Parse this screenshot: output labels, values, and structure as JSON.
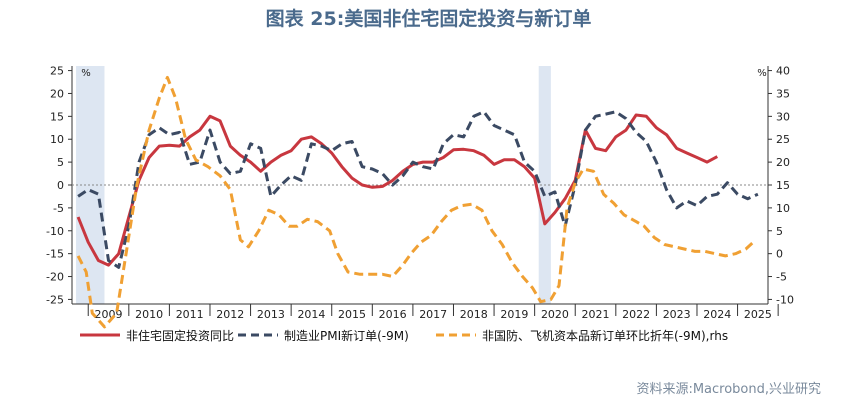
{
  "title": "图表 25:美国非住宅固定投资与新订单",
  "source": "资料来源:Macrobond,兴业研究",
  "chart_data": {
    "type": "line",
    "x_ticks": [
      "2009",
      "2010",
      "2011",
      "2012",
      "2013",
      "2014",
      "2015",
      "2016",
      "2017",
      "2018",
      "2019",
      "2020",
      "2021",
      "2022",
      "2023",
      "2024",
      "2025"
    ],
    "y_left": {
      "unit": "%",
      "ticks": [
        25,
        20,
        15,
        10,
        5,
        0,
        -5,
        -10,
        -15,
        -20,
        -25
      ],
      "range": [
        -26,
        26
      ]
    },
    "y_right": {
      "unit": "%",
      "ticks": [
        40,
        35,
        30,
        25,
        20,
        15,
        10,
        5,
        0,
        -5,
        -10
      ],
      "range": [
        -11,
        41
      ]
    },
    "recession_shading": [
      [
        2008.7,
        2009.4
      ],
      [
        2020.1,
        2020.4
      ]
    ],
    "zero_line": "left axis 0, dotted",
    "series": [
      {
        "name": "非住宅固定投资同比",
        "axis": "left",
        "color": "#c8373f",
        "style": "solid",
        "points": [
          [
            2008.75,
            -7
          ],
          [
            2009.0,
            -12.5
          ],
          [
            2009.25,
            -16.5
          ],
          [
            2009.5,
            -17.5
          ],
          [
            2009.75,
            -15
          ],
          [
            2010.0,
            -7
          ],
          [
            2010.25,
            1
          ],
          [
            2010.5,
            6
          ],
          [
            2010.75,
            8.5
          ],
          [
            2011.0,
            8.7
          ],
          [
            2011.25,
            8.5
          ],
          [
            2011.5,
            10.5
          ],
          [
            2011.75,
            12
          ],
          [
            2012.0,
            15
          ],
          [
            2012.25,
            14
          ],
          [
            2012.5,
            8.5
          ],
          [
            2012.75,
            6.5
          ],
          [
            2013.0,
            5
          ],
          [
            2013.25,
            3
          ],
          [
            2013.5,
            5
          ],
          [
            2013.75,
            6.5
          ],
          [
            2014.0,
            7.5
          ],
          [
            2014.25,
            10
          ],
          [
            2014.5,
            10.5
          ],
          [
            2014.75,
            9
          ],
          [
            2015.0,
            7
          ],
          [
            2015.25,
            4
          ],
          [
            2015.5,
            1.5
          ],
          [
            2015.75,
            0
          ],
          [
            2016.0,
            -0.5
          ],
          [
            2016.25,
            -0.3
          ],
          [
            2016.5,
            1
          ],
          [
            2016.75,
            3
          ],
          [
            2017.0,
            4.5
          ],
          [
            2017.25,
            5
          ],
          [
            2017.5,
            5
          ],
          [
            2017.75,
            6
          ],
          [
            2018.0,
            7.7
          ],
          [
            2018.25,
            7.8
          ],
          [
            2018.5,
            7.5
          ],
          [
            2018.75,
            6.5
          ],
          [
            2019.0,
            4.5
          ],
          [
            2019.25,
            5.5
          ],
          [
            2019.5,
            5.5
          ],
          [
            2019.75,
            4
          ],
          [
            2020.0,
            1.5
          ],
          [
            2020.25,
            -8.5
          ],
          [
            2020.5,
            -6
          ],
          [
            2020.75,
            -3
          ],
          [
            2021.0,
            1
          ],
          [
            2021.25,
            12
          ],
          [
            2021.5,
            8
          ],
          [
            2021.75,
            7.5
          ],
          [
            2022.0,
            10.5
          ],
          [
            2022.25,
            12
          ],
          [
            2022.5,
            15.3
          ],
          [
            2022.75,
            15
          ],
          [
            2023.0,
            12.5
          ],
          [
            2023.25,
            11
          ],
          [
            2023.5,
            8
          ],
          [
            2023.75,
            7
          ],
          [
            2024.0,
            6
          ],
          [
            2024.25,
            5
          ],
          [
            2024.5,
            6.2
          ]
        ]
      },
      {
        "name": "制造业PMI新订单(-9M)",
        "axis": "left",
        "color": "#3b4a63",
        "style": "dashed",
        "points": [
          [
            2008.75,
            -2.5
          ],
          [
            2009.0,
            -1
          ],
          [
            2009.25,
            -2
          ],
          [
            2009.5,
            -16.5
          ],
          [
            2009.75,
            -18
          ],
          [
            2010.0,
            -9
          ],
          [
            2010.25,
            5
          ],
          [
            2010.5,
            11
          ],
          [
            2010.75,
            12.5
          ],
          [
            2011.0,
            11
          ],
          [
            2011.25,
            11.5
          ],
          [
            2011.5,
            4.5
          ],
          [
            2011.75,
            5
          ],
          [
            2012.0,
            12
          ],
          [
            2012.25,
            5
          ],
          [
            2012.5,
            2.5
          ],
          [
            2012.75,
            3
          ],
          [
            2013.0,
            9
          ],
          [
            2013.25,
            8
          ],
          [
            2013.5,
            -2.5
          ],
          [
            2013.75,
            0
          ],
          [
            2014.0,
            2
          ],
          [
            2014.25,
            1
          ],
          [
            2014.5,
            9
          ],
          [
            2014.75,
            8.5
          ],
          [
            2015.0,
            7.5
          ],
          [
            2015.25,
            9
          ],
          [
            2015.5,
            9.5
          ],
          [
            2015.75,
            4
          ],
          [
            2016.0,
            3.5
          ],
          [
            2016.25,
            2.5
          ],
          [
            2016.5,
            0
          ],
          [
            2016.75,
            2
          ],
          [
            2017.0,
            5
          ],
          [
            2017.25,
            4
          ],
          [
            2017.5,
            3.5
          ],
          [
            2017.75,
            9
          ],
          [
            2018.0,
            11
          ],
          [
            2018.25,
            10.5
          ],
          [
            2018.5,
            15
          ],
          [
            2018.75,
            16
          ],
          [
            2019.0,
            13
          ],
          [
            2019.25,
            12
          ],
          [
            2019.5,
            11
          ],
          [
            2019.75,
            5
          ],
          [
            2020.0,
            3
          ],
          [
            2020.25,
            -2.5
          ],
          [
            2020.5,
            -1.5
          ],
          [
            2020.75,
            -9
          ],
          [
            2021.0,
            0
          ],
          [
            2021.25,
            12
          ],
          [
            2021.5,
            15
          ],
          [
            2021.75,
            15.5
          ],
          [
            2022.0,
            16
          ],
          [
            2022.25,
            14.5
          ],
          [
            2022.5,
            11.5
          ],
          [
            2022.75,
            9.5
          ],
          [
            2023.0,
            5
          ],
          [
            2023.25,
            -1
          ],
          [
            2023.5,
            -5
          ],
          [
            2023.75,
            -3.5
          ],
          [
            2024.0,
            -4.5
          ],
          [
            2024.25,
            -2.5
          ],
          [
            2024.5,
            -2
          ],
          [
            2024.75,
            0.5
          ],
          [
            2025.0,
            -2
          ],
          [
            2025.25,
            -3
          ],
          [
            2025.5,
            -2
          ]
        ]
      },
      {
        "name": "非国防、飞机资本品新订单环比折年(-9M),rhs",
        "axis": "right",
        "color": "#f0a033",
        "style": "dashed",
        "points": [
          [
            2008.75,
            -0.5
          ],
          [
            2008.95,
            -4
          ],
          [
            2009.1,
            -13
          ],
          [
            2009.4,
            -16
          ],
          [
            2009.7,
            -13
          ],
          [
            2009.95,
            1
          ],
          [
            2010.2,
            15
          ],
          [
            2010.5,
            27
          ],
          [
            2010.75,
            34
          ],
          [
            2010.95,
            38.5
          ],
          [
            2011.15,
            34
          ],
          [
            2011.4,
            25
          ],
          [
            2011.65,
            20.5
          ],
          [
            2011.95,
            19
          ],
          [
            2012.25,
            17
          ],
          [
            2012.5,
            14
          ],
          [
            2012.75,
            3
          ],
          [
            2012.95,
            1.5
          ],
          [
            2013.2,
            5
          ],
          [
            2013.45,
            9.5
          ],
          [
            2013.7,
            8.5
          ],
          [
            2013.95,
            6
          ],
          [
            2014.15,
            6
          ],
          [
            2014.4,
            7.5
          ],
          [
            2014.65,
            7
          ],
          [
            2014.95,
            5
          ],
          [
            2015.15,
            0
          ],
          [
            2015.4,
            -4
          ],
          [
            2015.7,
            -4.5
          ],
          [
            2015.95,
            -4.5
          ],
          [
            2016.25,
            -4.5
          ],
          [
            2016.5,
            -5
          ],
          [
            2016.75,
            -2.5
          ],
          [
            2016.95,
            0
          ],
          [
            2017.2,
            2.5
          ],
          [
            2017.45,
            4
          ],
          [
            2017.7,
            7
          ],
          [
            2017.95,
            9.5
          ],
          [
            2018.2,
            10.5
          ],
          [
            2018.45,
            10.8
          ],
          [
            2018.7,
            9.5
          ],
          [
            2018.95,
            5
          ],
          [
            2019.2,
            2
          ],
          [
            2019.45,
            -2
          ],
          [
            2019.7,
            -5
          ],
          [
            2019.95,
            -7.5
          ],
          [
            2020.15,
            -10.5
          ],
          [
            2020.4,
            -10
          ],
          [
            2020.6,
            -7
          ],
          [
            2020.8,
            10
          ],
          [
            2021.0,
            15.5
          ],
          [
            2021.2,
            18.5
          ],
          [
            2021.45,
            18
          ],
          [
            2021.7,
            13
          ],
          [
            2021.95,
            11
          ],
          [
            2022.2,
            8.5
          ],
          [
            2022.5,
            7
          ],
          [
            2022.7,
            6
          ],
          [
            2022.95,
            3.5
          ],
          [
            2023.2,
            2
          ],
          [
            2023.45,
            1.5
          ],
          [
            2023.7,
            1
          ],
          [
            2023.95,
            0.5
          ],
          [
            2024.2,
            0.5
          ],
          [
            2024.45,
            0
          ],
          [
            2024.7,
            -0.5
          ],
          [
            2024.95,
            0
          ],
          [
            2025.2,
            1
          ],
          [
            2025.45,
            3
          ]
        ]
      }
    ],
    "legend": [
      {
        "label": "非住宅固定投资同比",
        "color": "#c8373f",
        "style": "solid"
      },
      {
        "label": "制造业PMI新订单(-9M)",
        "color": "#3b4a63",
        "style": "dashed"
      },
      {
        "label": "非国防、飞机资本品新订单环比折年(-9M),rhs",
        "color": "#f0a033",
        "style": "dashed"
      }
    ],
    "legend_position": "bottom",
    "grid": false
  }
}
